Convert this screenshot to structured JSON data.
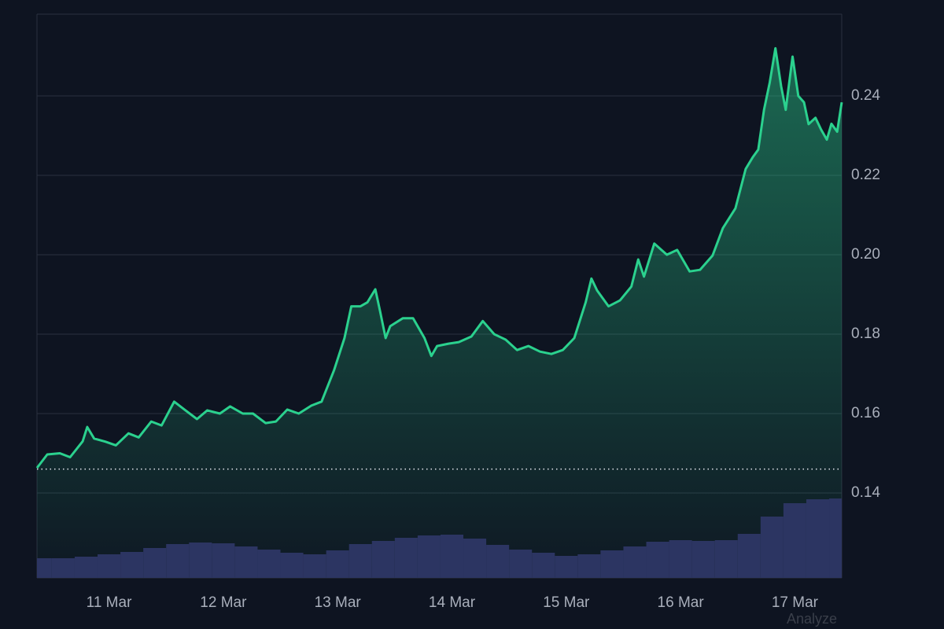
{
  "chart_data": {
    "type": "line",
    "x": [
      10.37,
      10.46,
      10.57,
      10.66,
      10.77,
      10.81,
      10.87,
      10.97,
      11.06,
      11.17,
      11.26,
      11.37,
      11.46,
      11.57,
      11.66,
      11.77,
      11.86,
      11.97,
      12.06,
      12.17,
      12.26,
      12.37,
      12.46,
      12.56,
      12.66,
      12.77,
      12.86,
      12.97,
      13.06,
      13.12,
      13.2,
      13.26,
      13.33,
      13.37,
      13.42,
      13.46,
      13.57,
      13.66,
      13.76,
      13.82,
      13.87,
      13.97,
      14.06,
      14.17,
      14.27,
      14.37,
      14.47,
      14.57,
      14.67,
      14.77,
      14.87,
      14.97,
      15.07,
      15.17,
      15.22,
      15.27,
      15.37,
      15.47,
      15.57,
      15.63,
      15.68,
      15.77,
      15.88,
      15.97,
      16.08,
      16.17,
      16.28,
      16.37,
      16.48,
      16.57,
      16.63,
      16.68,
      16.73,
      16.78,
      16.83,
      16.88,
      16.92,
      16.98,
      17.03,
      17.08,
      17.12,
      17.18,
      17.23,
      17.28,
      17.32,
      17.37,
      17.41
    ],
    "series": [
      {
        "color": "#2bd18e",
        "values": [
          0.1463,
          0.1497,
          0.15,
          0.149,
          0.153,
          0.1566,
          0.1537,
          0.1529,
          0.152,
          0.155,
          0.154,
          0.158,
          0.157,
          0.163,
          0.161,
          0.1586,
          0.1608,
          0.16,
          0.1618,
          0.16,
          0.16,
          0.1576,
          0.158,
          0.161,
          0.16,
          0.162,
          0.163,
          0.171,
          0.179,
          0.187,
          0.187,
          0.188,
          0.1913,
          0.186,
          0.179,
          0.182,
          0.184,
          0.184,
          0.179,
          0.1745,
          0.177,
          0.1776,
          0.178,
          0.1794,
          0.1833,
          0.18,
          0.1786,
          0.176,
          0.177,
          0.1756,
          0.175,
          0.176,
          0.179,
          0.188,
          0.194,
          0.191,
          0.187,
          0.1885,
          0.192,
          0.1988,
          0.1945,
          0.2028,
          0.2,
          0.2012,
          0.1958,
          0.1962,
          0.1998,
          0.2067,
          0.2117,
          0.2216,
          0.2245,
          0.2265,
          0.2365,
          0.2434,
          0.252,
          0.2424,
          0.2365,
          0.2499,
          0.24,
          0.2384,
          0.2329,
          0.2345,
          0.2315,
          0.229,
          0.233,
          0.231,
          0.2384
        ]
      },
      {
        "type": "bar",
        "axis": "y2",
        "color": "#2c3562",
        "x": [
          10.4,
          10.6,
          10.8,
          11.0,
          11.2,
          11.4,
          11.6,
          11.8,
          12.0,
          12.2,
          12.4,
          12.6,
          12.8,
          13.0,
          13.2,
          13.4,
          13.6,
          13.8,
          14.0,
          14.2,
          14.4,
          14.6,
          14.8,
          15.0,
          15.2,
          15.4,
          15.6,
          15.8,
          16.0,
          16.2,
          16.4,
          16.6,
          16.8,
          17.0,
          17.2,
          17.4
        ],
        "values": [
          25,
          25,
          27,
          30,
          33,
          38,
          43,
          45,
          44,
          40,
          36,
          32,
          30,
          35,
          43,
          47,
          51,
          54,
          55,
          50,
          42,
          36,
          32,
          28,
          30,
          35,
          40,
          46,
          48,
          47,
          48,
          56,
          78,
          95,
          100,
          101
        ]
      }
    ],
    "baseline": 0.146,
    "xlim": [
      10.37,
      17.41
    ],
    "xticks": [
      {
        "value": 11,
        "label": "11 Mar"
      },
      {
        "value": 12,
        "label": "12 Mar"
      },
      {
        "value": 13,
        "label": "13 Mar"
      },
      {
        "value": 14,
        "label": "14 Mar"
      },
      {
        "value": 15,
        "label": "15 Mar"
      },
      {
        "value": 16,
        "label": "16 Mar"
      },
      {
        "value": 17,
        "label": "17 Mar"
      }
    ],
    "ylim": [
      0.1186,
      0.2606
    ],
    "yticks": [
      0.14,
      0.16,
      0.18,
      {
        "value": 0.2,
        "label": "0.20"
      },
      0.22,
      0.24
    ],
    "y2lim": [
      0,
      717
    ],
    "grid": true
  },
  "watermark": "Analyze"
}
